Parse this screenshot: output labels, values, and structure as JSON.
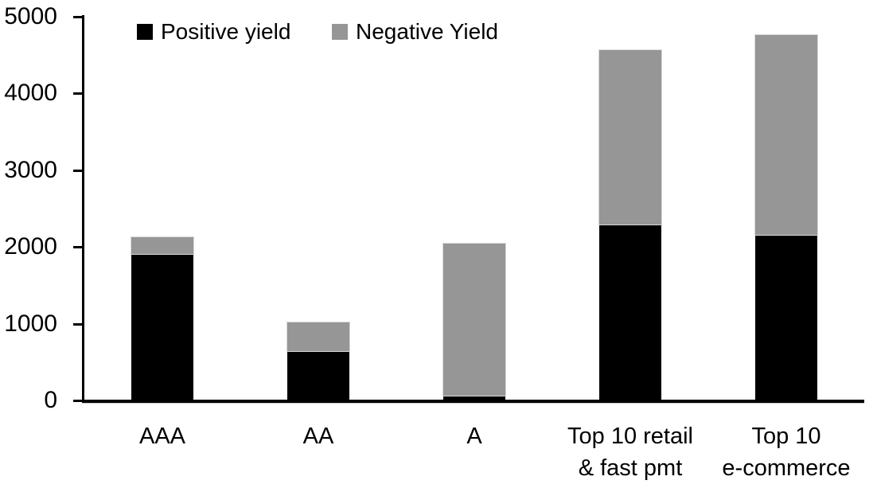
{
  "chart_data": {
    "type": "bar",
    "stacked": true,
    "title": "",
    "xlabel": "",
    "ylabel": "",
    "categories": [
      "AAA",
      "AA",
      "A",
      "Top 10 retail\n& fast pmt",
      "Top 10\ne-commerce"
    ],
    "series": [
      {
        "name": "Positive yield",
        "color": "#000000",
        "values": [
          1900,
          630,
          50,
          2280,
          2140
        ]
      },
      {
        "name": "Negative Yield",
        "color": "#969696",
        "values": [
          220,
          370,
          1980,
          2270,
          2600
        ]
      }
    ],
    "totals": [
      2120,
      1000,
      2030,
      4550,
      4740
    ],
    "ylim": [
      0,
      5000
    ],
    "yticks": [
      0,
      1000,
      2000,
      3000,
      4000,
      5000
    ],
    "grid": false,
    "legend_position": "top",
    "background_color": "#ffffff",
    "axis_color": "#000000"
  }
}
